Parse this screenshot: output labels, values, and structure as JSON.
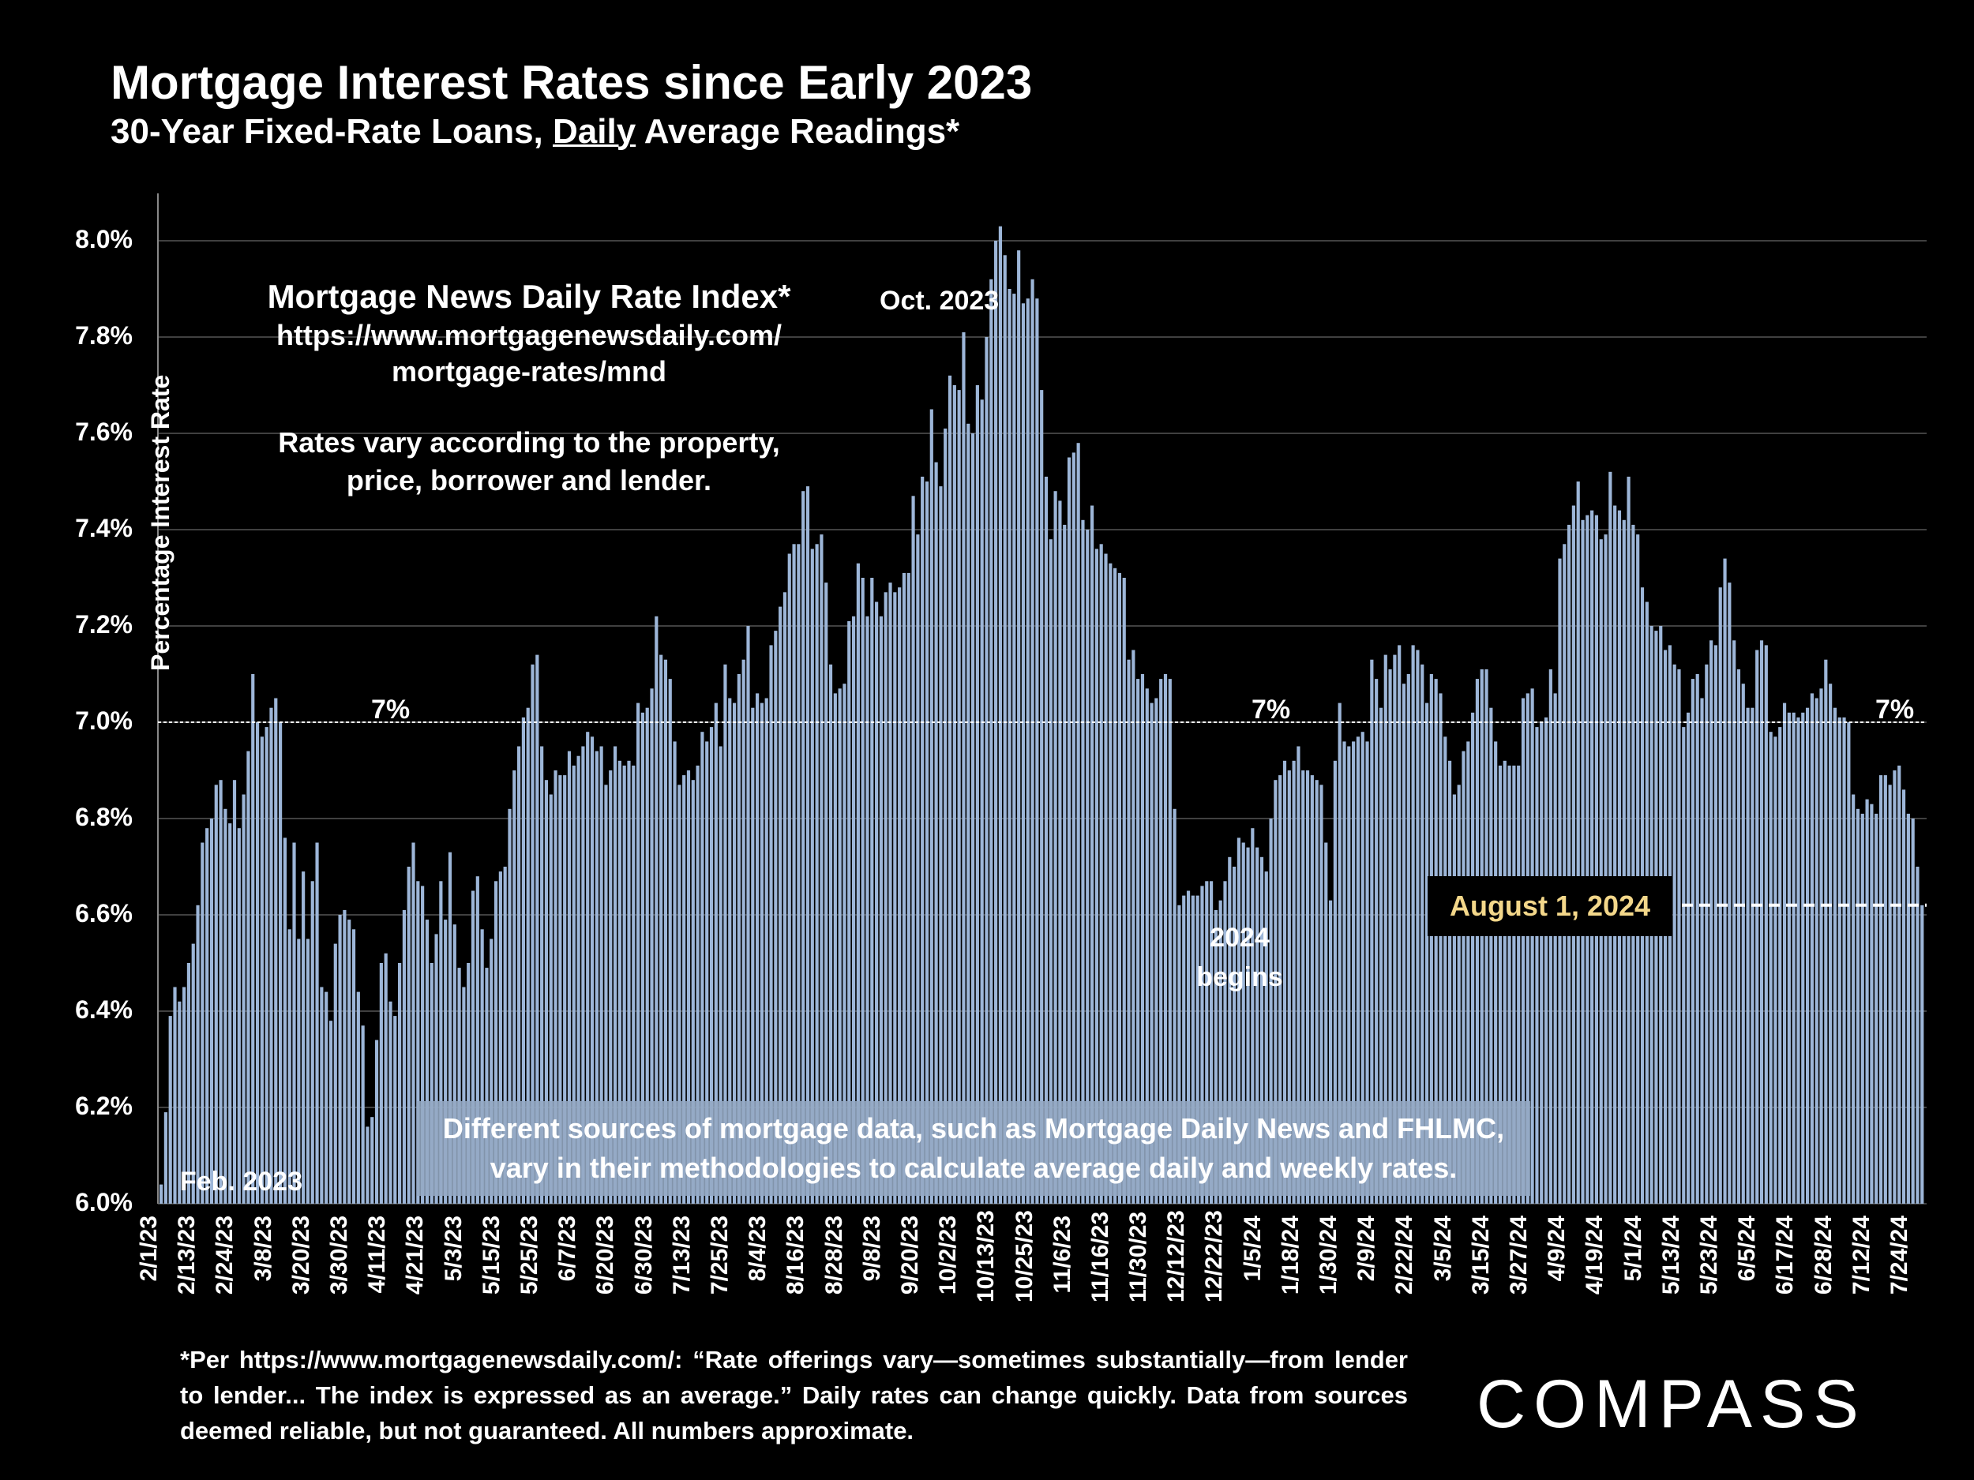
{
  "header": {
    "title": "Mortgage Interest Rates since Early 2023",
    "subtitle_pre": "30-Year Fixed-Rate Loans, ",
    "subtitle_underlined": "Daily",
    "subtitle_post": " Average Readings*"
  },
  "source_box": {
    "title": "Mortgage News Daily Rate Index*",
    "url_line1": "https://www.mortgagenewsdaily.com/",
    "url_line2": "mortgage-rates/mnd",
    "note_line1": "Rates vary according to the property,",
    "note_line2": "price, borrower and lender."
  },
  "annotations": {
    "oct_2023": "Oct. 2023",
    "feb_2023": "Feb. 2023",
    "seven_pct_1": "7%",
    "seven_pct_2": "7%",
    "seven_pct_3": "7%",
    "begins_2024_line1": "2024",
    "begins_2024_line2": "begins",
    "aug_2024": "August 1, 2024"
  },
  "sources_note": {
    "line1": "Different sources of mortgage data, such as Mortgage Daily News and FHLMC,",
    "line2": "vary in their methodologies to calculate average daily and weekly rates."
  },
  "footnote": "*Per https://www.mortgagenewsdaily.com/: “Rate offerings vary—sometimes substantially—from lender to lender... The index is expressed as an average.” Daily rates can change quickly. Data from sources deemed reliable, but not guaranteed. All numbers approximate.",
  "logo": "COMPASS",
  "colors": {
    "bar": "#9db6d8",
    "bar_edge": "#c9d8ec",
    "grid": "#555555",
    "aug_text": "#f3d78a"
  },
  "chart_data": {
    "type": "bar",
    "title": "Mortgage Interest Rates since Early 2023",
    "subtitle": "30-Year Fixed-Rate Loans, Daily Average Readings*",
    "xlabel": "",
    "ylabel": "Percentage Interest  Rate",
    "ylim": [
      6.0,
      8.0
    ],
    "y_ticks": [
      "6.0%",
      "6.2%",
      "6.4%",
      "6.6%",
      "6.8%",
      "7.0%",
      "7.2%",
      "7.4%",
      "7.6%",
      "7.8%",
      "8.0%"
    ],
    "x_tick_labels": [
      "2/1/23",
      "2/13/23",
      "2/24/23",
      "3/8/23",
      "3/20/23",
      "3/30/23",
      "4/11/23",
      "4/21/23",
      "5/3/23",
      "5/15/23",
      "5/25/23",
      "6/7/23",
      "6/20/23",
      "6/30/23",
      "7/13/23",
      "7/25/23",
      "8/4/23",
      "8/16/23",
      "8/28/23",
      "9/8/23",
      "9/20/23",
      "10/2/23",
      "10/13/23",
      "10/25/23",
      "11/6/23",
      "11/16/23",
      "11/30/23",
      "12/12/23",
      "12/22/23",
      "1/5/24",
      "1/18/24",
      "1/30/24",
      "2/9/24",
      "2/22/24",
      "3/5/24",
      "3/15/24",
      "3/27/24",
      "4/9/24",
      "4/19/24",
      "5/1/24",
      "5/13/24",
      "5/23/24",
      "6/5/24",
      "6/17/24",
      "6/28/24",
      "7/12/24",
      "7/24/24"
    ],
    "reference_line": {
      "value": 7.0,
      "label": "7%"
    },
    "latest": {
      "label": "August 1, 2024",
      "value": 6.62
    },
    "grid": true,
    "values": [
      6.04,
      6.19,
      6.39,
      6.45,
      6.42,
      6.45,
      6.5,
      6.54,
      6.62,
      6.75,
      6.78,
      6.8,
      6.87,
      6.88,
      6.82,
      6.79,
      6.88,
      6.78,
      6.85,
      6.94,
      7.1,
      7.0,
      6.97,
      6.99,
      7.03,
      7.05,
      7.0,
      6.76,
      6.57,
      6.75,
      6.55,
      6.69,
      6.55,
      6.67,
      6.75,
      6.45,
      6.44,
      6.38,
      6.54,
      6.6,
      6.61,
      6.59,
      6.57,
      6.44,
      6.37,
      6.16,
      6.18,
      6.34,
      6.5,
      6.52,
      6.42,
      6.39,
      6.5,
      6.61,
      6.7,
      6.75,
      6.67,
      6.66,
      6.59,
      6.5,
      6.56,
      6.67,
      6.59,
      6.73,
      6.58,
      6.49,
      6.45,
      6.5,
      6.65,
      6.68,
      6.57,
      6.49,
      6.55,
      6.67,
      6.69,
      6.7,
      6.82,
      6.9,
      6.95,
      7.01,
      7.03,
      7.12,
      7.14,
      6.95,
      6.88,
      6.85,
      6.9,
      6.89,
      6.89,
      6.94,
      6.91,
      6.93,
      6.95,
      6.98,
      6.97,
      6.94,
      6.95,
      6.87,
      6.9,
      6.95,
      6.92,
      6.91,
      6.92,
      6.91,
      7.04,
      7.02,
      7.03,
      7.07,
      7.22,
      7.14,
      7.13,
      7.09,
      6.96,
      6.87,
      6.89,
      6.9,
      6.88,
      6.91,
      6.98,
      6.96,
      6.99,
      7.04,
      6.95,
      7.12,
      7.05,
      7.04,
      7.1,
      7.13,
      7.2,
      7.03,
      7.06,
      7.04,
      7.05,
      7.16,
      7.19,
      7.24,
      7.27,
      7.35,
      7.37,
      7.37,
      7.48,
      7.49,
      7.36,
      7.37,
      7.39,
      7.29,
      7.12,
      7.06,
      7.07,
      7.08,
      7.21,
      7.22,
      7.33,
      7.3,
      7.22,
      7.3,
      7.25,
      7.22,
      7.27,
      7.29,
      7.27,
      7.28,
      7.31,
      7.31,
      7.47,
      7.39,
      7.51,
      7.5,
      7.65,
      7.54,
      7.49,
      7.61,
      7.72,
      7.7,
      7.69,
      7.81,
      7.62,
      7.6,
      7.7,
      7.67,
      7.8,
      7.92,
      8.0,
      8.03,
      7.97,
      7.9,
      7.89,
      7.98,
      7.87,
      7.88,
      7.92,
      7.88,
      7.69,
      7.51,
      7.38,
      7.48,
      7.46,
      7.41,
      7.55,
      7.56,
      7.58,
      7.42,
      7.4,
      7.45,
      7.36,
      7.37,
      7.35,
      7.33,
      7.32,
      7.31,
      7.3,
      7.13,
      7.15,
      7.09,
      7.1,
      7.07,
      7.04,
      7.05,
      7.09,
      7.1,
      7.09,
      6.82,
      6.62,
      6.64,
      6.65,
      6.64,
      6.64,
      6.66,
      6.67,
      6.67,
      6.61,
      6.63,
      6.67,
      6.72,
      6.7,
      6.76,
      6.75,
      6.74,
      6.78,
      6.74,
      6.72,
      6.69,
      6.8,
      6.88,
      6.89,
      6.92,
      6.9,
      6.92,
      6.95,
      6.9,
      6.9,
      6.89,
      6.88,
      6.87,
      6.75,
      6.63,
      6.92,
      7.04,
      6.96,
      6.95,
      6.96,
      6.97,
      6.98,
      6.96,
      7.13,
      7.09,
      7.03,
      7.14,
      7.11,
      7.14,
      7.16,
      7.08,
      7.1,
      7.16,
      7.15,
      7.12,
      7.04,
      7.1,
      7.09,
      7.06,
      6.97,
      6.92,
      6.85,
      6.87,
      6.94,
      6.96,
      7.02,
      7.09,
      7.11,
      7.11,
      7.03,
      6.96,
      6.91,
      6.92,
      6.91,
      6.91,
      6.91,
      7.05,
      7.06,
      7.07,
      6.99,
      7.0,
      7.01,
      7.11,
      7.06,
      7.34,
      7.37,
      7.41,
      7.45,
      7.5,
      7.42,
      7.43,
      7.44,
      7.43,
      7.38,
      7.39,
      7.52,
      7.45,
      7.44,
      7.42,
      7.51,
      7.41,
      7.39,
      7.28,
      7.25,
      7.2,
      7.19,
      7.2,
      7.15,
      7.16,
      7.12,
      7.11,
      6.99,
      7.02,
      7.09,
      7.1,
      7.05,
      7.12,
      7.17,
      7.16,
      7.28,
      7.34,
      7.29,
      7.17,
      7.11,
      7.08,
      7.03,
      7.03,
      7.15,
      7.17,
      7.16,
      6.98,
      6.97,
      6.99,
      7.04,
      7.02,
      7.02,
      7.01,
      7.02,
      7.03,
      7.06,
      7.05,
      7.07,
      7.13,
      7.08,
      7.03,
      7.01,
      7.01,
      7.0,
      6.85,
      6.82,
      6.81,
      6.84,
      6.83,
      6.81,
      6.89,
      6.89,
      6.87,
      6.9,
      6.91,
      6.86,
      6.81,
      6.8,
      6.7,
      6.62
    ]
  }
}
